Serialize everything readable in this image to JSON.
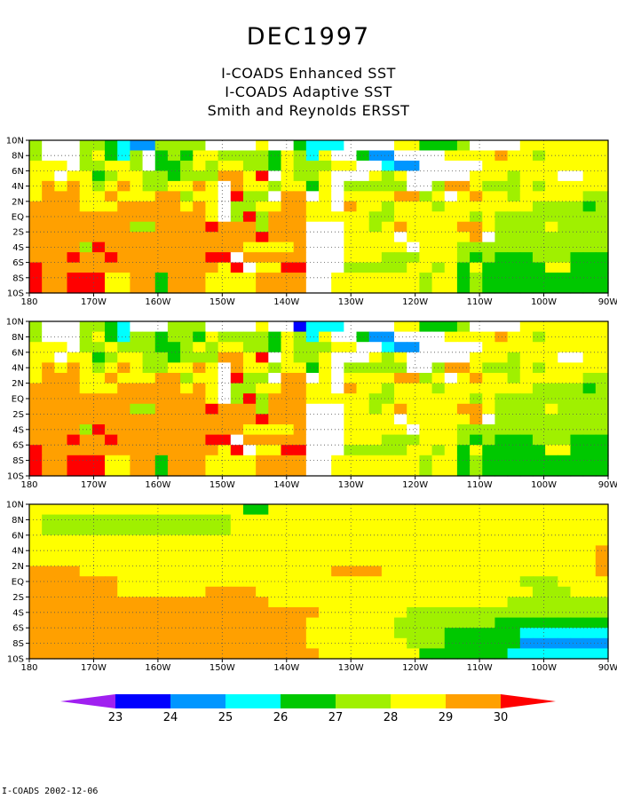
{
  "title": "DEC1997",
  "subtitles": [
    "I-COADS Enhanced SST",
    "I-COADS Adaptive SST",
    "Smith and Reynolds ERSST"
  ],
  "footer": "I-COADS 2002-12-06",
  "chart_data": {
    "type": "heatmap",
    "x_ticks": [
      "180",
      "170W",
      "160W",
      "150W",
      "140W",
      "130W",
      "120W",
      "110W",
      "100W",
      "90W"
    ],
    "y_ticks": [
      "10N",
      "8N",
      "6N",
      "4N",
      "2N",
      "EQ",
      "2S",
      "4S",
      "6S",
      "8S",
      "10S"
    ],
    "x_range_deg_lon": [
      180,
      270
    ],
    "y_range_deg_lat": [
      -10,
      10
    ],
    "grid": true,
    "colorbar": {
      "levels": [
        23,
        24,
        25,
        26,
        27,
        28,
        29,
        30
      ],
      "colors": [
        "#a020f0",
        "#0000ff",
        "#0096ff",
        "#00ffff",
        "#00c800",
        "#a0f000",
        "#ffff00",
        "#ffa000",
        "#ff0000"
      ],
      "labels": [
        "23",
        "24",
        "25",
        "26",
        "27",
        "28",
        "29",
        "30"
      ]
    },
    "panels": [
      {
        "name": "I-COADS Enhanced SST",
        "value_key": "0=white(no data),1=purple,2=blue,3=lt-blue,4=cyan,5=green,6=lt-green,7=yellow,8=orange,9=red",
        "rows": [
          "6000665433666600007005444000077555600007777777",
          "6000675460565776666576470053300007777877677777",
          "7770667760556767766576667700433000007777777777",
          "7707756776656668879076670007670000077767770077",
          "7878767876677870877677570666660068876667677777",
          "7888778777886770966088070777788670787767777766",
          "8888777888887870667788770877677767777777666656",
          "8888888888888870696888777776677777767666666666",
          "8888888866888898886888000776787777887666676666",
          "8888888888888888889888000777707777780666666666",
          "8888698888888888877778000777770777666666666666",
          "8889889888888899088888000777666777656555666555",
          "9888888888888887907799000666667767575555577555",
          "9889997788588877778888007777777677565555555555",
          "9889997788588877778888007777777677565555555555"
        ]
      },
      {
        "name": "I-COADS Adaptive SST",
        "value_key": "same as panel 1",
        "rows": [
          "6000665400066600007002444000077555600007777777",
          "6000675466566576666576470053300007777877677777",
          "7770667666556767766576667700433000007777777777",
          "7707756776656668879076670007670000077767770077",
          "7878767876677870877677570666660068876667677777",
          "7888778777886770966088070777788670787767777766",
          "8888777888887870667788770877677767777777666656",
          "8888888888888870696888777776677777767666666666",
          "8888888866888898886888000776787777887666676666",
          "8888888888888888889888000777707777780666666666",
          "8888698888888888877778000777770777666666666666",
          "8889889888888899088888000777666777656555666555",
          "9888888888888887907799000666667767575555577555",
          "9889997788588877778888007777777677565555555555",
          "9889997788588877778888007777777677565555555555"
        ]
      },
      {
        "name": "Smith and Reynolds ERSST",
        "value_key": "same as panel 1",
        "rows": [
          "7777777777777777755777777777777777777777777777",
          "7666666666666666777777777777777777777777777777",
          "7666666666666666777777777777777777777777777777",
          "7777777777777777777777777777777777777777777777",
          "7777777777777777777777777777777777777777777778",
          "7777777777777777777777777777777777777777777778",
          "8888777777777777777777778888777777777777777778",
          "8888888777777777777777777777777777777776667777",
          "8888888777777788887777777777777777777777666777",
          "8888888888888888888777777777777777777766666666",
          "8888888888888888888888877777776666666666666666",
          "8888888888888888888888777777766666666555555555",
          "8888888888888888888888777777766665555554444444",
          "8888888888888888888888777777776665555553333333",
          "8888888888888888888888877777777555555544444444"
        ]
      }
    ]
  }
}
